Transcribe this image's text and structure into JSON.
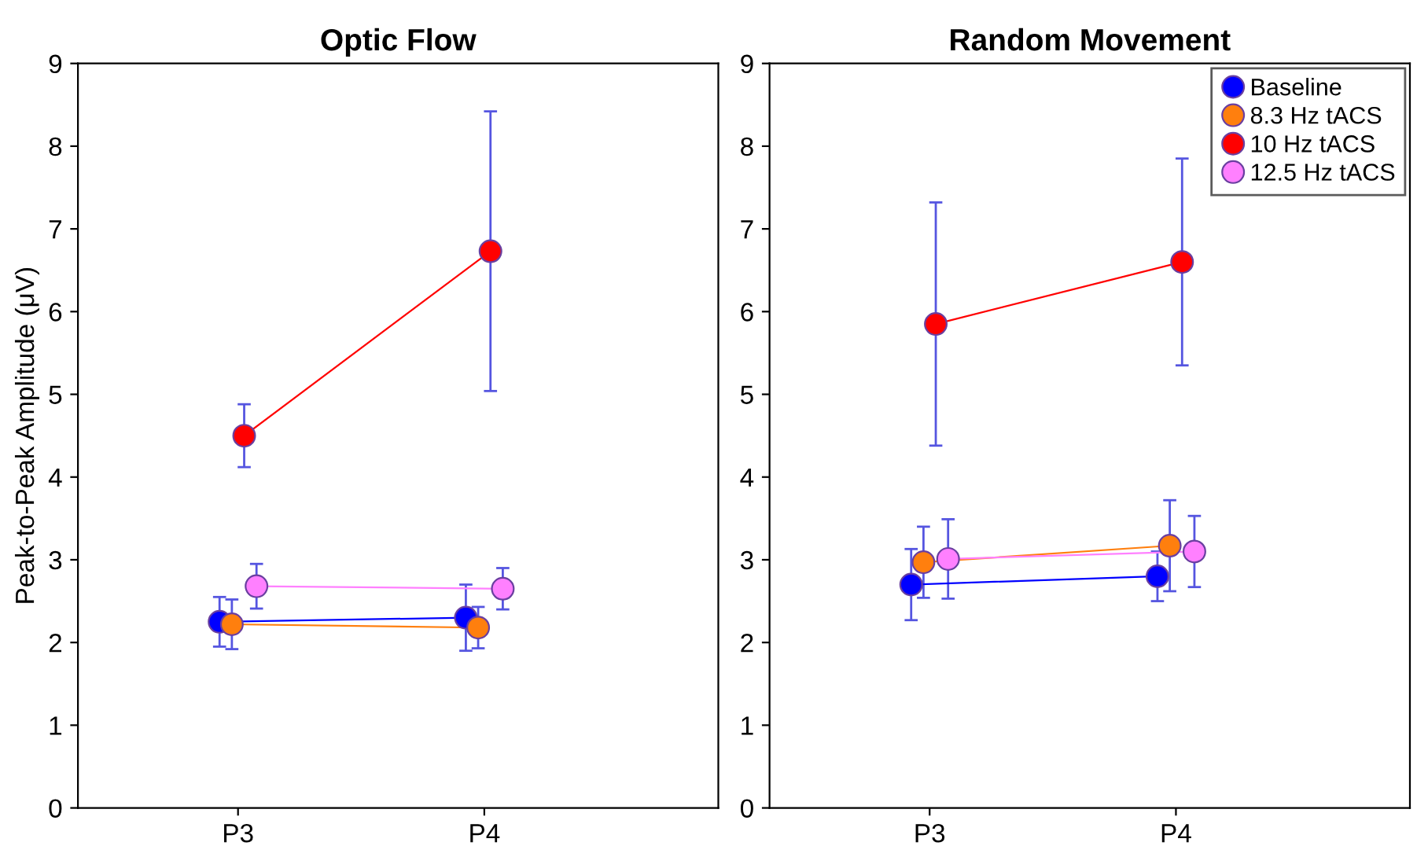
{
  "chart_data": [
    {
      "type": "line",
      "title": "Optic Flow",
      "ylabel": "Peak-to-Peak Amplitude (μV)",
      "categories": [
        "P3",
        "P4"
      ],
      "ylim": [
        0,
        9
      ],
      "yticks": [
        0,
        1,
        2,
        3,
        4,
        5,
        6,
        7,
        8,
        9
      ],
      "marker": "circle",
      "grid": false,
      "legend": false,
      "series": [
        {
          "color": "#0000ff",
          "values": [
            2.25,
            2.3
          ],
          "errors": [
            0.3,
            0.4
          ]
        },
        {
          "color": "#ff7f0e",
          "values": [
            2.22,
            2.18
          ],
          "errors": [
            0.3,
            0.25
          ]
        },
        {
          "color": "#ff0000",
          "values": [
            4.5,
            6.73
          ],
          "errors": [
            0.38,
            1.69
          ]
        },
        {
          "color": "#ff80ff",
          "values": [
            2.68,
            2.65
          ],
          "errors": [
            0.27,
            0.25
          ]
        }
      ]
    },
    {
      "type": "line",
      "title": "Random Movement",
      "categories": [
        "P3",
        "P4"
      ],
      "ylim": [
        0,
        9
      ],
      "yticks": [
        0,
        1,
        2,
        3,
        4,
        5,
        6,
        7,
        8,
        9
      ],
      "marker": "circle",
      "grid": false,
      "legend": "top right",
      "series": [
        {
          "name": "Baseline",
          "color": "#0000ff",
          "values": [
            2.7,
            2.8
          ],
          "errors": [
            0.43,
            0.3
          ]
        },
        {
          "name": "8.3 Hz tACS",
          "color": "#ff7f0e",
          "values": [
            2.97,
            3.17
          ],
          "errors": [
            0.43,
            0.55
          ]
        },
        {
          "name": "10 Hz tACS",
          "color": "#ff0000",
          "values": [
            5.85,
            6.6
          ],
          "errors": [
            1.47,
            1.25
          ]
        },
        {
          "name": "12.5 Hz tACS",
          "color": "#ff80ff",
          "values": [
            3.01,
            3.1
          ],
          "errors": [
            0.48,
            0.43
          ]
        }
      ]
    }
  ]
}
